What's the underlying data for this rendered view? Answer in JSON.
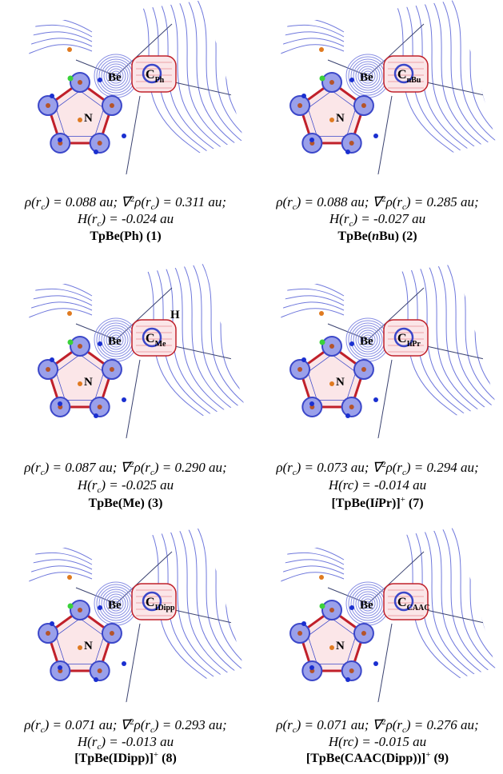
{
  "panels": [
    {
      "atoms": {
        "be": "Be",
        "c": "C",
        "c_sub": "Ph",
        "n": "N"
      },
      "caption": [
        [
          {
            "i": "ρ(r"
          },
          {
            "sub": "c"
          },
          {
            "i": ") = 0.088 au; ∇"
          },
          {
            "sup": "2"
          },
          {
            "i": "ρ(r"
          },
          {
            "sub": "c"
          },
          {
            "i": ") = 0.311 au;"
          }
        ],
        [
          {
            "i": "H(r"
          },
          {
            "sub": "c"
          },
          {
            "i": ") = -0.024 au"
          }
        ],
        [
          {
            "b": "TpBe(Ph) (1)"
          }
        ]
      ]
    },
    {
      "atoms": {
        "be": "Be",
        "c": "C",
        "c_sub": "nBu",
        "n": "N"
      },
      "caption": [
        [
          {
            "i": "ρ(r"
          },
          {
            "sub": "c"
          },
          {
            "i": ") = 0.088 au; ∇"
          },
          {
            "sup": "2"
          },
          {
            "i": "ρ(r"
          },
          {
            "sub": "c"
          },
          {
            "i": ") = 0.285 au;"
          }
        ],
        [
          {
            "i": "H(r"
          },
          {
            "sub": "c"
          },
          {
            "i": ") = -0.027 au"
          }
        ],
        [
          {
            "b": "TpBe("
          },
          {
            "bi": "n"
          },
          {
            "b": "Bu) (2)"
          }
        ]
      ]
    },
    {
      "atoms": {
        "be": "Be",
        "c": "C",
        "c_sub": "Me",
        "n": "N",
        "h": "H"
      },
      "caption": [
        [
          {
            "i": "ρ(r"
          },
          {
            "sub": "c"
          },
          {
            "i": ") = 0.087 au; ∇"
          },
          {
            "sup": "2"
          },
          {
            "i": "ρ(r"
          },
          {
            "sub": "c"
          },
          {
            "i": ") = 0.290 au;"
          }
        ],
        [
          {
            "i": "H(r"
          },
          {
            "sub": "c"
          },
          {
            "i": ") = -0.025 au"
          }
        ],
        [
          {
            "b": "TpBe(Me) (3)"
          }
        ]
      ]
    },
    {
      "atoms": {
        "be": "Be",
        "c": "C",
        "c_sub": "IiPr",
        "n": "N"
      },
      "caption": [
        [
          {
            "i": "ρ(r"
          },
          {
            "sub": "c"
          },
          {
            "i": ") = 0.073 au; ∇"
          },
          {
            "sup": "2"
          },
          {
            "i": "ρ(r"
          },
          {
            "sub": "c"
          },
          {
            "i": ") = 0.294 au;"
          }
        ],
        [
          {
            "i": "H(rc) = -0.014 au"
          }
        ],
        [
          {
            "b": "[TpBe(I"
          },
          {
            "bi": "i"
          },
          {
            "b": "Pr)]"
          },
          {
            "sup": "+"
          },
          {
            "b": " (7)"
          }
        ]
      ]
    },
    {
      "atoms": {
        "be": "Be",
        "c": "C",
        "c_sub": "IDipp",
        "n": "N"
      },
      "caption": [
        [
          {
            "i": "ρ(r"
          },
          {
            "sub": "c"
          },
          {
            "i": ") = 0.071 au; ∇"
          },
          {
            "sup": "2"
          },
          {
            "i": "ρ(r"
          },
          {
            "sub": "c"
          },
          {
            "i": ") = 0.293 au;"
          }
        ],
        [
          {
            "i": "H(r"
          },
          {
            "sub": "c"
          },
          {
            "i": ") = -0.013 au"
          }
        ],
        [
          {
            "b": "[TpBe(IDipp)]"
          },
          {
            "sup": "+"
          },
          {
            "b": " (8)"
          }
        ]
      ]
    },
    {
      "atoms": {
        "be": "Be",
        "c": "C",
        "c_sub": "CAAC",
        "n": "N"
      },
      "caption": [
        [
          {
            "i": "ρ(r"
          },
          {
            "sub": "c"
          },
          {
            "i": ") = 0.071 au; ∇"
          },
          {
            "sup": "2"
          },
          {
            "i": "ρ(r"
          },
          {
            "sub": "c"
          },
          {
            "i": ") = 0.276 au;"
          }
        ],
        [
          {
            "i": "H(rc) = -0.015 au"
          }
        ],
        [
          {
            "b": "[TpBe(CAAC(Dipp))]"
          },
          {
            "sup": "+"
          },
          {
            "b": " (9)"
          }
        ]
      ]
    }
  ]
}
